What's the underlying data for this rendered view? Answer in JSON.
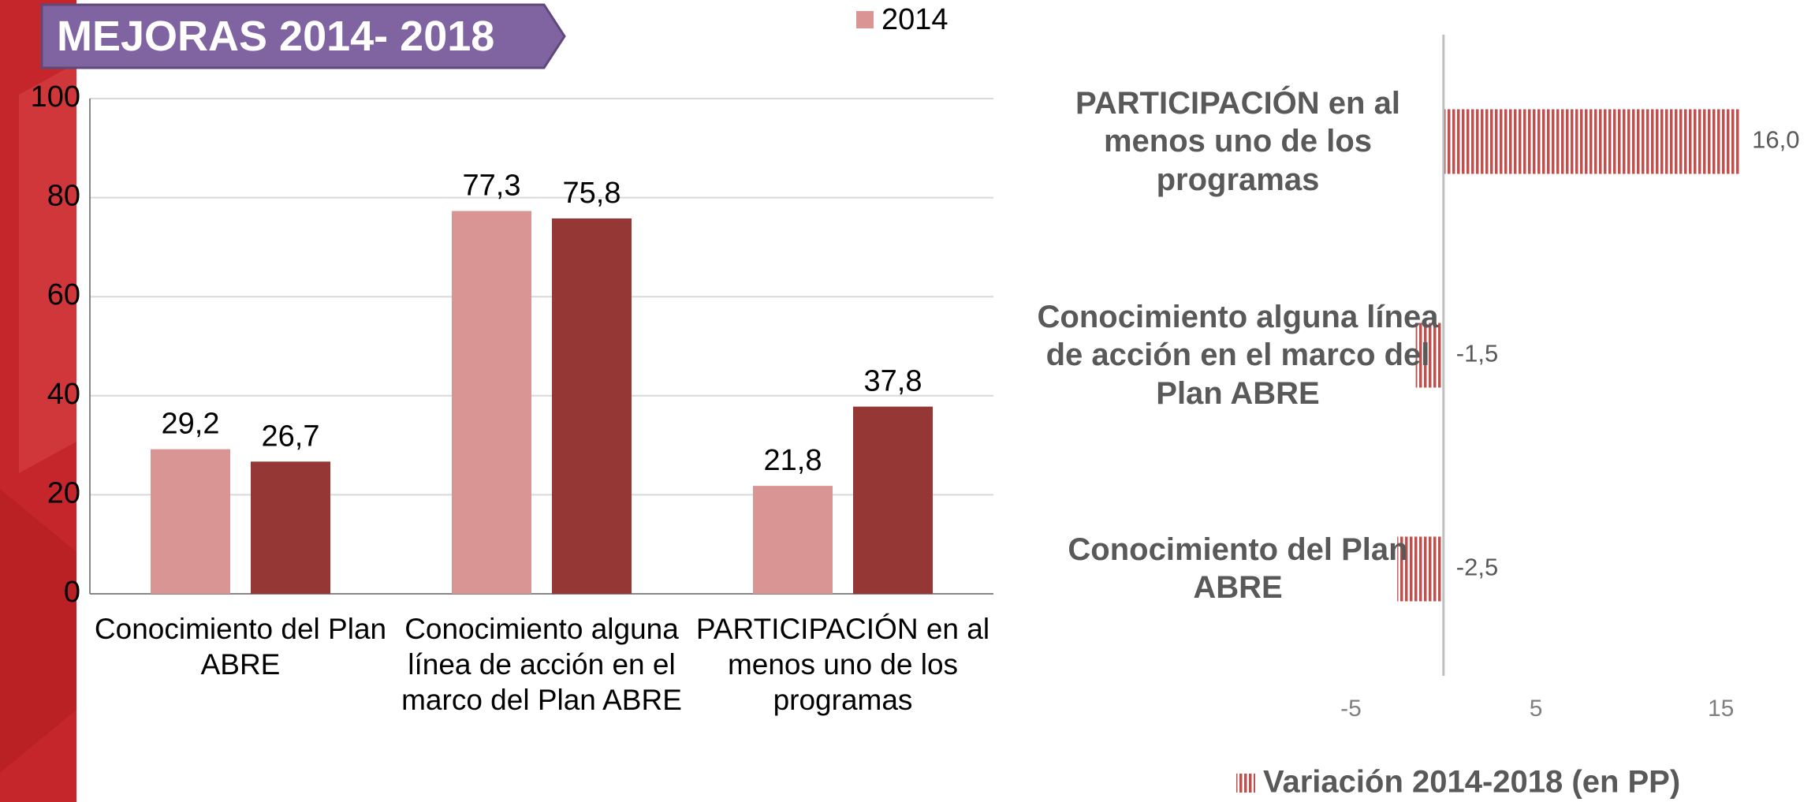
{
  "title": "MEJORAS 2014- 2018",
  "chart_data": [
    {
      "type": "bar",
      "categories": [
        "Conocimiento del Plan ABRE",
        "Conocimiento alguna línea de acción en el marco del Plan ABRE",
        "PARTICIPACIÓN en al menos uno de los programas"
      ],
      "series": [
        {
          "name": "2014",
          "color": "#d99594",
          "values": [
            29.2,
            77.3,
            21.8
          ],
          "value_labels": [
            "29,2",
            "77,3",
            "21,8"
          ]
        },
        {
          "color": "#953735",
          "values": [
            26.7,
            75.8,
            37.8
          ],
          "value_labels": [
            "26,7",
            "75,8",
            "37,8"
          ]
        }
      ],
      "ylim": [
        0,
        100
      ],
      "yticks": [
        0,
        20,
        40,
        60,
        80,
        100
      ],
      "grid": true,
      "legend": "top"
    },
    {
      "type": "barh",
      "categories": [
        "PARTICIPACIÓN en al menos uno de los programas",
        "Conocimiento alguna línea de acción en el marco del Plan ABRE",
        "Conocimiento del Plan ABRE"
      ],
      "series": [
        {
          "name": "Variación 2014-2018 (en PP)",
          "color": "#c0504d",
          "values": [
            16.0,
            -1.5,
            -2.5
          ],
          "value_labels": [
            "16,0",
            "-1,5",
            "-2,5"
          ]
        }
      ],
      "xlim": [
        -5,
        20
      ],
      "xticks": [
        -5,
        5,
        15
      ],
      "grid": false,
      "legend": "bottom"
    }
  ]
}
